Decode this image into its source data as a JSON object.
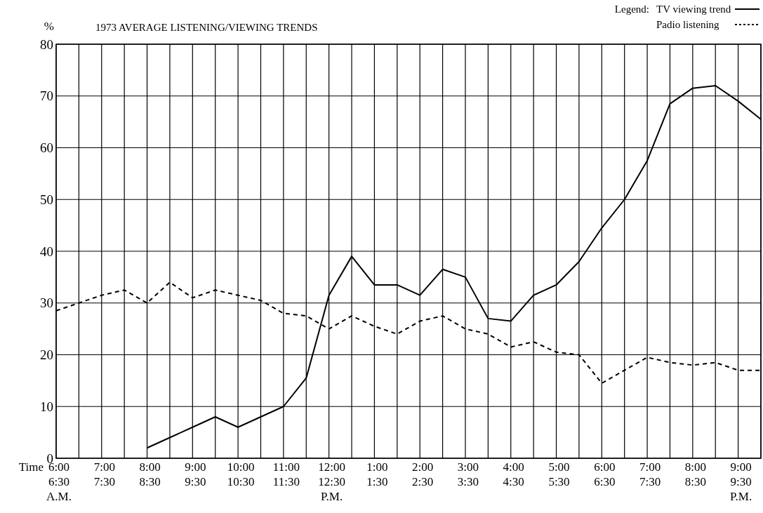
{
  "chart_data": {
    "type": "line",
    "title": "1973 AVERAGE LISTENING/VIEWING TRENDS",
    "ylabel": "%",
    "xlabel": "Time",
    "legend_title": "Legend:",
    "legend": "top right",
    "grid": true,
    "marker": "none",
    "categories": [
      "6:00\n6:30\nA.M.",
      null,
      "7:00\n7:30",
      null,
      "8:00\n8:30",
      null,
      "9:00\n9:30",
      null,
      "10:00\n10:30",
      null,
      "11:00\n11:30",
      null,
      "12:00\n12:30\nP.M.",
      null,
      "1:00\n1:30",
      null,
      "2:00\n2:30",
      null,
      "3:00\n3:30",
      null,
      "4:00\n4:30",
      null,
      "5:00\n5:30",
      null,
      "6:00\n6:30",
      null,
      "7:00\n7:30",
      null,
      "8:00\n8:30",
      null,
      "9:00\n9:30\nP.M.",
      null
    ],
    "ylim": [
      0,
      80
    ],
    "yticks": [
      0,
      10,
      20,
      30,
      40,
      50,
      60,
      70,
      80
    ],
    "series": [
      {
        "name": "TV viewing trend",
        "color": "#000000",
        "line_style": "solid",
        "values": [
          null,
          null,
          null,
          null,
          2,
          4,
          6,
          8,
          6,
          8,
          10,
          15.5,
          31.5,
          39,
          33.5,
          33.5,
          31.5,
          36.5,
          35,
          27,
          26.5,
          31.5,
          33.5,
          38,
          44.5,
          50,
          57.5,
          68.5,
          71.5,
          72,
          69,
          65.5
        ]
      },
      {
        "name": "Padio listening",
        "color": "#000000",
        "line_style": "dashed",
        "values": [
          28.5,
          30,
          31.5,
          32.5,
          30,
          34,
          31,
          32.5,
          31.5,
          30.5,
          28,
          27.5,
          25,
          27.5,
          25.5,
          24,
          26.5,
          27.5,
          25,
          24,
          21.5,
          22.5,
          20.5,
          20,
          14.5,
          17,
          19.5,
          18.5,
          18,
          18.5,
          17,
          17
        ]
      }
    ]
  }
}
